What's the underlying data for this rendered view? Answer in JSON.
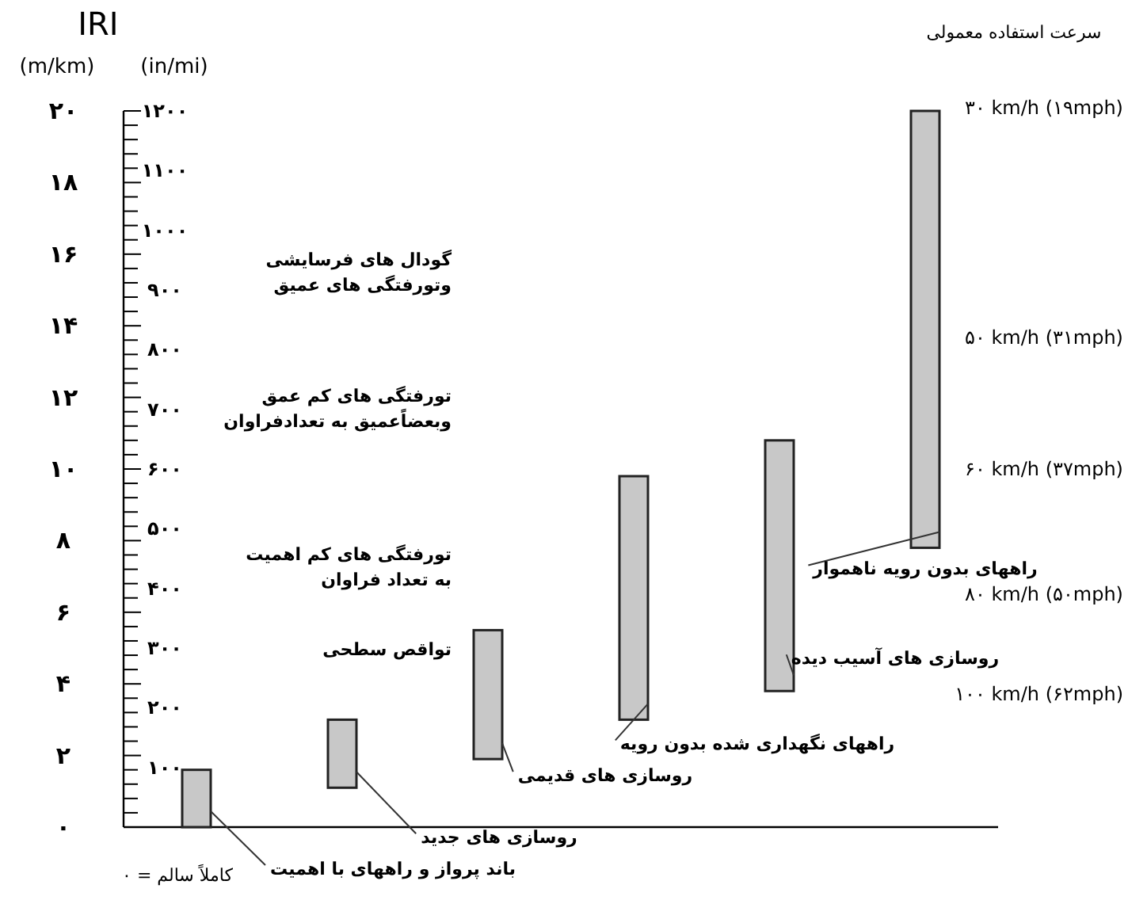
{
  "chart_data": {
    "type": "bar",
    "title": "IRI",
    "ylabel": "(m/km)",
    "y2label": "(in/mi)",
    "categories": [
      null,
      null,
      null,
      null,
      null,
      null
    ],
    "base": [
      0,
      1.1,
      1.9,
      3.0,
      3.8,
      7.8
    ],
    "values": [
      1.6,
      1.9,
      3.6,
      6.8,
      7.0,
      12.2
    ],
    "color": "#c8c8c8",
    "ylim": [
      0,
      20
    ],
    "yticks": [
      {
        "value": 0,
        "label": "۰"
      },
      {
        "value": 0.4,
        "label": null
      },
      {
        "value": 0.8,
        "label": null
      },
      {
        "value": 1.2,
        "label": null
      },
      {
        "value": 1.6,
        "label": null
      },
      {
        "value": 2,
        "label": "۲"
      },
      {
        "value": 2.4,
        "label": null
      },
      {
        "value": 2.8,
        "label": null
      },
      {
        "value": 3.2,
        "label": null
      },
      {
        "value": 3.6,
        "label": null
      },
      {
        "value": 4,
        "label": "۴"
      },
      {
        "value": 4.4,
        "label": null
      },
      {
        "value": 4.8,
        "label": null
      },
      {
        "value": 5.2,
        "label": null
      },
      {
        "value": 5.6,
        "label": null
      },
      {
        "value": 6,
        "label": "۶"
      },
      {
        "value": 6.4,
        "label": null
      },
      {
        "value": 6.8,
        "label": null
      },
      {
        "value": 7.2,
        "label": null
      },
      {
        "value": 7.6,
        "label": null
      },
      {
        "value": 8,
        "label": "۸"
      },
      {
        "value": 8.4,
        "label": null
      },
      {
        "value": 8.8,
        "label": null
      },
      {
        "value": 9.2,
        "label": null
      },
      {
        "value": 9.6,
        "label": null
      },
      {
        "value": 10,
        "label": "۱۰"
      },
      {
        "value": 10.4,
        "label": null
      },
      {
        "value": 10.8,
        "label": null
      },
      {
        "value": 11.2,
        "label": null
      },
      {
        "value": 11.6,
        "label": null
      },
      {
        "value": 12,
        "label": "۱۲"
      },
      {
        "value": 12.4,
        "label": null
      },
      {
        "value": 12.8,
        "label": null
      },
      {
        "value": 13.2,
        "label": null
      },
      {
        "value": 13.6,
        "label": null
      },
      {
        "value": 14,
        "label": "۱۴"
      },
      {
        "value": 14.4,
        "label": null
      },
      {
        "value": 14.8,
        "label": null
      },
      {
        "value": 15.2,
        "label": null
      },
      {
        "value": 15.6,
        "label": null
      },
      {
        "value": 16,
        "label": "۱۶"
      },
      {
        "value": 16.4,
        "label": null
      },
      {
        "value": 16.8,
        "label": null
      },
      {
        "value": 17.2,
        "label": null
      },
      {
        "value": 17.6,
        "label": null
      },
      {
        "value": 18,
        "label": "۱۸"
      },
      {
        "value": 18.4,
        "label": null
      },
      {
        "value": 18.8,
        "label": null
      },
      {
        "value": 19.2,
        "label": null
      },
      {
        "value": 19.6,
        "label": null
      },
      {
        "value": 20,
        "label": "۲۰"
      }
    ],
    "y2lim": [
      0,
      1200
    ],
    "y2ticks": [
      {
        "value": 100,
        "label": "۱۰۰"
      },
      {
        "value": 200,
        "label": "۲۰۰"
      },
      {
        "value": 300,
        "label": "۳۰۰"
      },
      {
        "value": 400,
        "label": "۴۰۰"
      },
      {
        "value": 500,
        "label": "۵۰۰"
      },
      {
        "value": 600,
        "label": "۶۰۰"
      },
      {
        "value": 700,
        "label": "۷۰۰"
      },
      {
        "value": 800,
        "label": "۸۰۰"
      },
      {
        "value": 900,
        "label": "۹۰۰"
      },
      {
        "value": 1000,
        "label": "۱۰۰۰"
      },
      {
        "value": 1100,
        "label": "۱۱۰۰"
      },
      {
        "value": 1200,
        "label": "۱۲۰۰"
      }
    ],
    "annotations": [
      "سرعت استفاده معمولی",
      "۳۰ km/h (۱۹mph)",
      "۵۰ km/h (۳۱mph)",
      "۶۰ km/h (۳۷mph)",
      "۸۰ km/h (۵۰mph)",
      "۱۰۰ km/h (۶۲mph)",
      "گودال های فرسایشی\nوتورفتگی های عمیق",
      "تورفتگی های کم عمق\nوبعضاًعمیق به تعدادفراوان",
      "تورفتگی های کم اهمیت\nبه تعداد فراوان",
      "تواقص سطحی",
      "باند پرواز و راههای با اهمیت",
      "روسازی های جدید",
      "روسازی های قدیمی",
      "راههای نگهداری شده بدون رویه",
      "روسازی های آسیب دیده",
      "راههای بدون رویه ناهموار",
      "کاملاً سالم = ۰"
    ]
  }
}
